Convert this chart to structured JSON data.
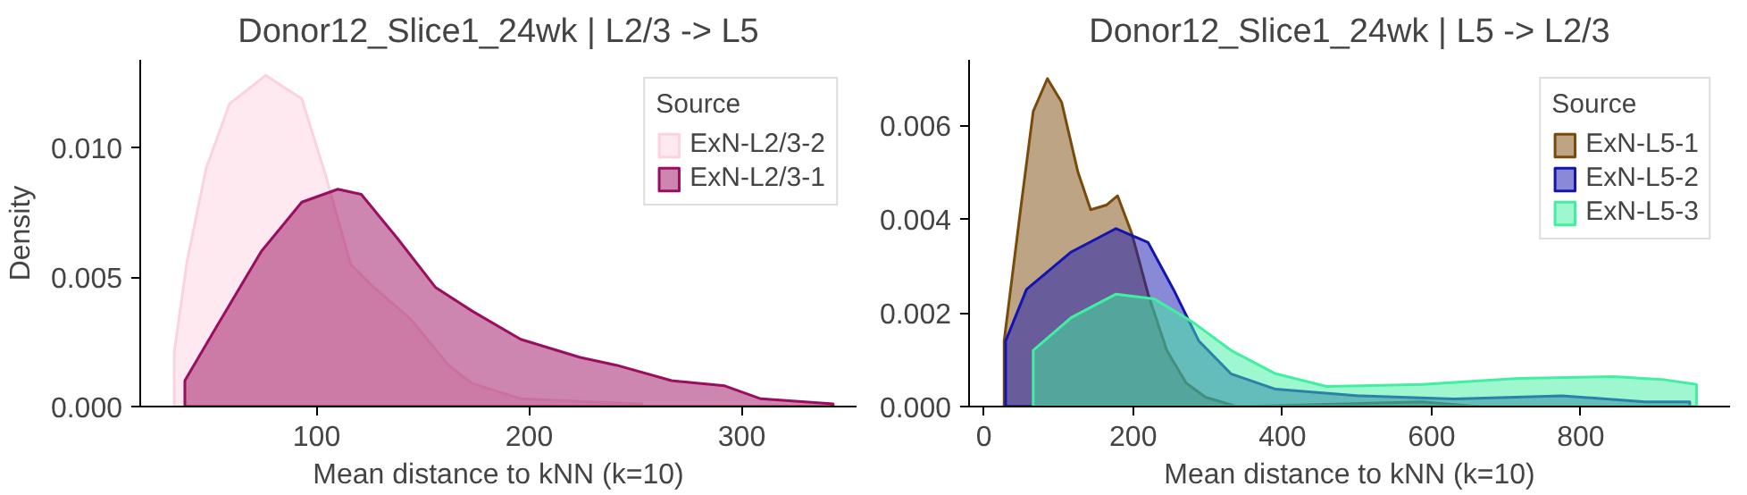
{
  "chart_data": [
    {
      "type": "area",
      "title": "Donor12_Slice1_24wk | L2/3 -> L5",
      "xlabel": "Mean distance to kNN (k=10)",
      "ylabel": "Density",
      "legend_title": "Source",
      "legend": "top right",
      "grid": false,
      "xlim": [
        17,
        354
      ],
      "ylim": [
        0,
        0.0134
      ],
      "xticks": [
        100,
        200,
        300
      ],
      "yticks": [
        {
          "value": 0,
          "label": "0.000"
        },
        {
          "value": 0.005,
          "label": "0.005"
        },
        {
          "value": 0.01,
          "label": "0.010"
        }
      ],
      "series": [
        {
          "name": "ExN-L2/3-2",
          "color": "#fbd3df",
          "x": [
            33,
            39,
            48,
            59,
            76,
            93,
            104,
            116,
            127,
            144,
            162,
            173,
            196,
            224,
            253
          ],
          "values": [
            0.0021,
            0.0056,
            0.0092,
            0.0117,
            0.0128,
            0.0119,
            0.009,
            0.0055,
            0.0046,
            0.0034,
            0.0016,
            0.0009,
            0.0003,
            0.0002,
            0.0001
          ]
        },
        {
          "name": "ExN-L2/3-1",
          "color": "#9b0e5f",
          "x": [
            38,
            53,
            74,
            93,
            110,
            121,
            138,
            156,
            173,
            196,
            224,
            241,
            267,
            292,
            309,
            343
          ],
          "values": [
            0.001,
            0.0031,
            0.006,
            0.0079,
            0.0084,
            0.0082,
            0.0065,
            0.0046,
            0.0037,
            0.0026,
            0.0019,
            0.0016,
            0.001,
            0.0008,
            0.0003,
            0.0001
          ]
        }
      ]
    },
    {
      "type": "area",
      "title": "Donor12_Slice1_24wk | L5 -> L2/3",
      "xlabel": "Mean distance to kNN (k=10)",
      "legend_title": "Source",
      "legend": "top right",
      "grid": false,
      "xlim": [
        -20,
        1000
      ],
      "ylim": [
        0,
        0.0074
      ],
      "xticks": [
        0,
        200,
        400,
        600,
        800
      ],
      "yticks": [
        {
          "value": 0,
          "label": "0.000"
        },
        {
          "value": 0.002,
          "label": "0.002"
        },
        {
          "value": 0.004,
          "label": "0.004"
        },
        {
          "value": 0.006,
          "label": "0.006"
        }
      ],
      "series": [
        {
          "name": "ExN-L5-1",
          "color": "#7a4a0a",
          "x": [
            27,
            49,
            66,
            85,
            104,
            126,
            143,
            164,
            179,
            198,
            220,
            245,
            271,
            297,
            339,
            587,
            664
          ],
          "values": [
            0.0014,
            0.0042,
            0.0063,
            0.007,
            0.0065,
            0.005,
            0.0042,
            0.0043,
            0.0045,
            0.0037,
            0.0024,
            0.0012,
            0.0005,
            0.0002,
            0,
            0.0001,
            0
          ]
        },
        {
          "name": "ExN-L5-2",
          "color": "#1414b0",
          "x": [
            29,
            57,
            117,
            177,
            220,
            254,
            288,
            331,
            391,
            502,
            630,
            775,
            886,
            946
          ],
          "values": [
            0.0014,
            0.0025,
            0.0033,
            0.0038,
            0.0035,
            0.0025,
            0.0014,
            0.0007,
            0.00037,
            0.00023,
            0.00016,
            0.00023,
            0.0001,
            0.0001
          ]
        },
        {
          "name": "ExN-L5-3",
          "color": "#40f0a0",
          "x": [
            66,
            117,
            177,
            228,
            280,
            331,
            391,
            459,
            587,
            716,
            844,
            913,
            955
          ],
          "values": [
            0.0012,
            0.0019,
            0.0024,
            0.0023,
            0.0018,
            0.0012,
            0.0007,
            0.00043,
            0.00047,
            0.0006,
            0.00064,
            0.00057,
            0.00047
          ]
        }
      ]
    }
  ]
}
